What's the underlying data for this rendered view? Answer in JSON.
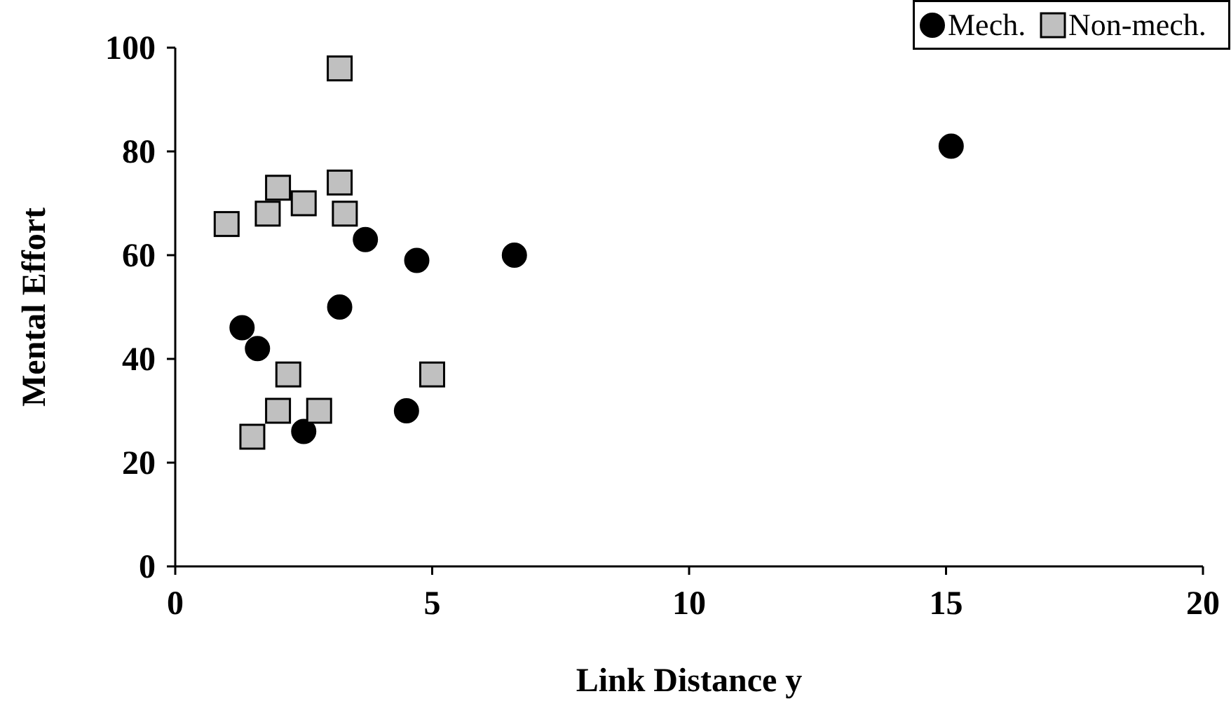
{
  "chart_data": {
    "type": "scatter",
    "xlabel": "Link Distance y",
    "ylabel": "Mental Effort",
    "xlim": [
      0,
      20
    ],
    "xticks": [
      0,
      5,
      10,
      15,
      20
    ],
    "ylim": [
      0,
      100
    ],
    "yticks": [
      0,
      20,
      40,
      60,
      80,
      100
    ],
    "grid": false,
    "legend": "top right",
    "series": [
      {
        "name": "Mech.",
        "color": "#000000",
        "marker": "circle",
        "x": [
          15.1,
          1.3,
          1.6,
          3.2,
          3.7,
          4.7,
          6.6,
          4.5,
          2.5
        ],
        "values": [
          81,
          46,
          42,
          50,
          63,
          59,
          60,
          30,
          26
        ]
      },
      {
        "name": "Non-mech.",
        "color": "#c0c0c0",
        "marker": "square",
        "x": [
          3.2,
          1.0,
          1.8,
          2.0,
          2.5,
          3.2,
          3.3,
          2.2,
          2.0,
          2.8,
          1.5,
          5.0
        ],
        "values": [
          96,
          66,
          68,
          73,
          70,
          74,
          68,
          37,
          30,
          30,
          25,
          37
        ]
      }
    ]
  }
}
